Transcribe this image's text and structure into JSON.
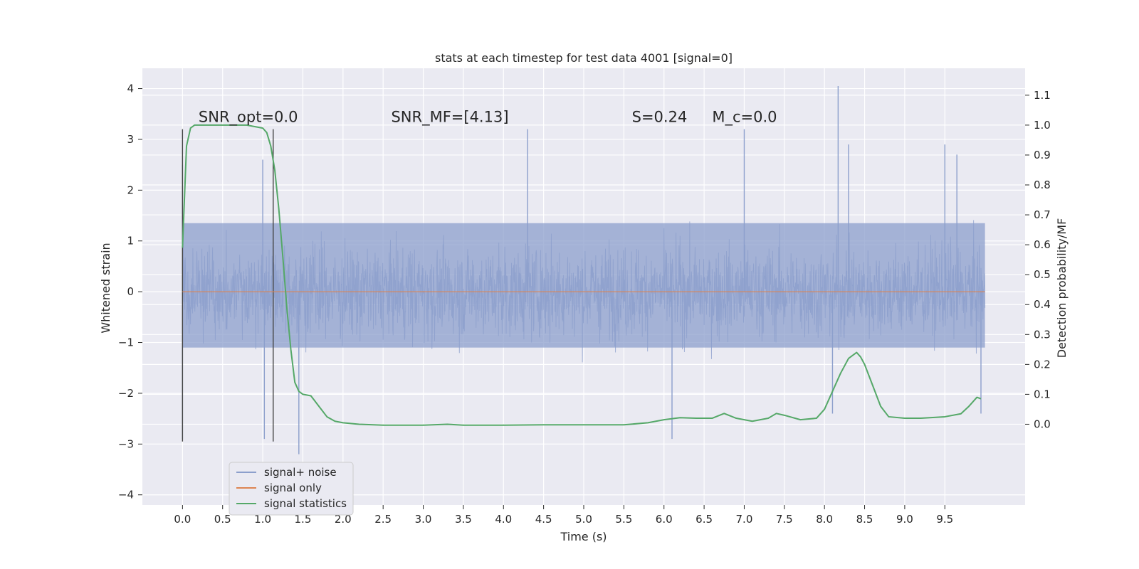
{
  "chart_data": {
    "type": "line",
    "title": "stats at each timestep for test data 4001 [signal=0]",
    "xlabel": "Time (s)",
    "ylabel": "Whitened strain",
    "ylabel_right": "Detection probability/MF",
    "xlim": [
      -0.5,
      10.5
    ],
    "ylim": [
      -4.2,
      4.4
    ],
    "ylim_right": [
      -0.27,
      1.19
    ],
    "x_ticks": [
      "0.0",
      "0.5",
      "1.0",
      "1.5",
      "2.0",
      "2.5",
      "3.0",
      "3.5",
      "4.0",
      "4.5",
      "5.0",
      "5.5",
      "6.0",
      "6.5",
      "7.0",
      "7.5",
      "8.0",
      "8.5",
      "9.0",
      "9.5"
    ],
    "y_ticks": [
      "−4",
      "−3",
      "−2",
      "−1",
      "0",
      "1",
      "2",
      "3",
      "4"
    ],
    "y_ticks_right": [
      "0.0",
      "0.1",
      "0.2",
      "0.3",
      "0.4",
      "0.5",
      "0.6",
      "0.7",
      "0.8",
      "0.9",
      "1.0",
      "1.1"
    ],
    "grid": true,
    "legend_position": "lower-left",
    "colors": {
      "background": "#eaeaf2",
      "grid": "#ffffff",
      "noise": "#8c9fcc",
      "signal": "#dd8452",
      "statistics": "#55a868",
      "marker": "#444444"
    },
    "annotations": [
      {
        "label": "SNR_opt=0.0",
        "x": 0.2,
        "y": 3.3
      },
      {
        "label": "SNR_MF=[4.13]",
        "x": 2.6,
        "y": 3.3
      },
      {
        "label": "S=0.24",
        "x": 5.6,
        "y": 3.3
      },
      {
        "label": "M_c=0.0",
        "x": 6.6,
        "y": 3.3
      }
    ],
    "vertical_markers": [
      0.0,
      1.13
    ],
    "series": [
      {
        "name": "signal+ noise",
        "axis": "left",
        "x_range": [
          0.0,
          10.0
        ],
        "typical_envelope": [
          -1.6,
          1.7
        ],
        "notable_peaks": [
          {
            "x": 0.0,
            "y": 2.5
          },
          {
            "x": 0.0,
            "y": -2.9
          },
          {
            "x": 1.0,
            "y": 2.6
          },
          {
            "x": 1.02,
            "y": -2.9
          },
          {
            "x": 1.45,
            "y": -3.2
          },
          {
            "x": 4.3,
            "y": 3.2
          },
          {
            "x": 6.1,
            "y": -2.9
          },
          {
            "x": 7.0,
            "y": 3.2
          },
          {
            "x": 8.17,
            "y": 4.05
          },
          {
            "x": 8.3,
            "y": 2.9
          },
          {
            "x": 8.1,
            "y": -2.4
          },
          {
            "x": 9.5,
            "y": 2.9
          },
          {
            "x": 9.65,
            "y": 2.7
          },
          {
            "x": 9.95,
            "y": -2.4
          }
        ]
      },
      {
        "name": "signal only",
        "axis": "left",
        "x": [
          0.0,
          10.0
        ],
        "values": [
          0.0,
          0.0
        ]
      },
      {
        "name": "signal statistics",
        "axis": "right",
        "x": [
          0.0,
          0.05,
          0.1,
          0.15,
          0.2,
          0.3,
          0.4,
          0.6,
          0.8,
          1.0,
          1.05,
          1.1,
          1.15,
          1.2,
          1.25,
          1.3,
          1.35,
          1.4,
          1.45,
          1.5,
          1.6,
          1.7,
          1.8,
          1.9,
          2.0,
          2.2,
          2.5,
          3.0,
          3.3,
          3.5,
          4.0,
          4.5,
          5.0,
          5.5,
          5.8,
          6.0,
          6.2,
          6.4,
          6.6,
          6.75,
          6.9,
          7.1,
          7.3,
          7.4,
          7.5,
          7.7,
          7.9,
          8.0,
          8.1,
          8.2,
          8.3,
          8.4,
          8.45,
          8.5,
          8.6,
          8.7,
          8.8,
          9.0,
          9.2,
          9.5,
          9.7,
          9.8,
          9.9,
          9.95
        ],
        "values": [
          0.59,
          0.93,
          0.99,
          1.0,
          1.0,
          1.0,
          1.0,
          1.0,
          1.0,
          0.99,
          0.975,
          0.93,
          0.85,
          0.72,
          0.56,
          0.39,
          0.25,
          0.14,
          0.11,
          0.1,
          0.095,
          0.06,
          0.025,
          0.01,
          0.005,
          0.0,
          -0.003,
          -0.003,
          0.0,
          -0.003,
          -0.003,
          -0.002,
          -0.002,
          -0.002,
          0.005,
          0.015,
          0.022,
          0.02,
          0.02,
          0.036,
          0.02,
          0.01,
          0.02,
          0.036,
          0.03,
          0.015,
          0.02,
          0.05,
          0.11,
          0.17,
          0.22,
          0.24,
          0.225,
          0.2,
          0.13,
          0.06,
          0.025,
          0.02,
          0.02,
          0.025,
          0.035,
          0.06,
          0.09,
          0.085
        ]
      }
    ]
  }
}
